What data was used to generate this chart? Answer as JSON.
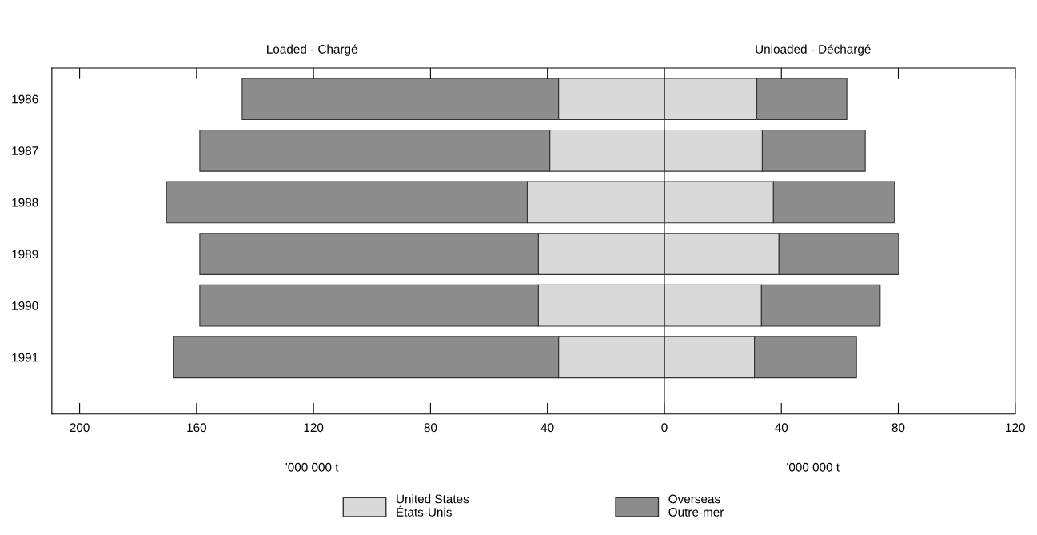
{
  "chart_data": {
    "type": "bar",
    "orientation": "horizontal",
    "stacked": true,
    "categories": [
      "1986",
      "1987",
      "1988",
      "1989",
      "1990",
      "1991"
    ],
    "series": [
      {
        "name": "United States\nÉtats-Unis",
        "color": "#d9d9d9",
        "values": [
          -36.2,
          -39.2,
          -46.9,
          -43.1,
          -43.1,
          -36.2
        ]
      },
      {
        "name": "Overseas\nOutre-mer",
        "color": "#8c8c8c",
        "values": [
          -108.2,
          -119.7,
          -123.4,
          -115.8,
          -115.8,
          -131.6
        ]
      },
      {
        "color": "#d9d9d9",
        "values": [
          31.6,
          33.5,
          37.3,
          39.2,
          33.2,
          30.8
        ]
      },
      {
        "color": "#8c8c8c",
        "values": [
          30.8,
          35.2,
          41.4,
          40.9,
          40.6,
          34.9
        ]
      }
    ],
    "xlim": [
      -209.5,
      120
    ],
    "xticks": [
      {
        "value": -200,
        "label": "200"
      },
      {
        "value": -160,
        "label": "160"
      },
      {
        "value": -120,
        "label": "120"
      },
      {
        "value": -80,
        "label": "80"
      },
      {
        "value": -40,
        "label": "40"
      },
      0,
      40,
      80,
      120
    ],
    "ref_lines": [
      {
        "axis": "x",
        "value": 0,
        "color": "#333333"
      }
    ],
    "annotations": [
      "Loaded - Chargé",
      "Unloaded - Déchargé",
      "'000 000 t",
      "'000 000 t"
    ],
    "legend": "bottom",
    "grid": false
  }
}
